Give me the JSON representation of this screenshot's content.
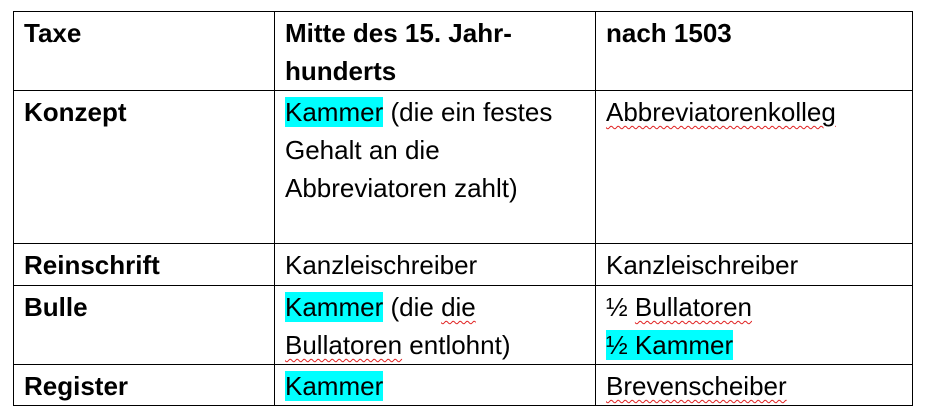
{
  "table": {
    "header": [
      "Taxe",
      "Mitte des 15. Jahr-hunderts",
      "nach 1503"
    ],
    "header_col2_line1": "Mitte des 15. Jahr-",
    "header_col2_line2": "hunderts",
    "rows": [
      {
        "label": "Konzept",
        "mid_highlight": "Kammer",
        "mid_rest": " (die ein festes Gehalt an die Abbreviatoren zahlt)",
        "after": "Abbreviatorenkolleg"
      },
      {
        "label": "Reinschrift",
        "mid": "Kanzleischreiber",
        "after": "Kanzleischreiber"
      },
      {
        "label": "Bulle",
        "mid_highlight": "Kammer",
        "mid_rest_1": " (die ",
        "mid_rest_2": "die",
        "mid_rest_3": "Bullatoren",
        "mid_rest_4": " entlohnt)",
        "after_line1_prefix": "½ ",
        "after_line1_word": "Bullatoren",
        "after_line2": "½ Kammer"
      },
      {
        "label": "Register",
        "mid_highlight": "Kammer",
        "after": "Brevenscheiber"
      }
    ],
    "highlight_color": "#00ffff"
  }
}
